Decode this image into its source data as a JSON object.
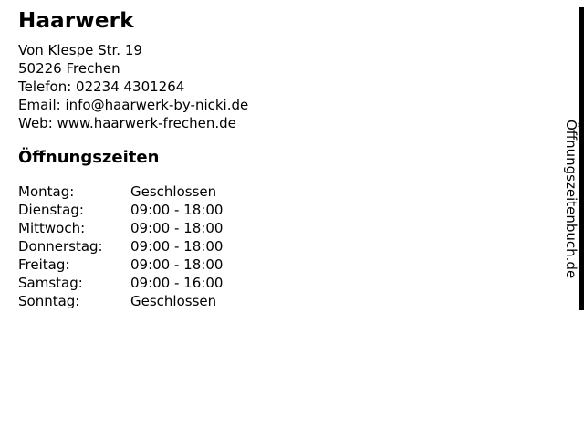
{
  "business": {
    "name": "Haarwerk",
    "address_line1": "Von Klespe Str. 19",
    "address_line2": "50226 Frechen",
    "phone_line": "Telefon: 02234 4301264",
    "email_line": "Email: info@haarwerk-by-nicki.de",
    "web_line": "Web: www.haarwerk-frechen.de"
  },
  "hours": {
    "heading": "Öffnungszeiten",
    "rows": [
      {
        "day": "Montag:",
        "time": "Geschlossen"
      },
      {
        "day": "Dienstag:",
        "time": "09:00 - 18:00"
      },
      {
        "day": "Mittwoch:",
        "time": "09:00 - 18:00"
      },
      {
        "day": "Donnerstag:",
        "time": "09:00 - 18:00"
      },
      {
        "day": "Freitag:",
        "time": "09:00 - 18:00"
      },
      {
        "day": "Samstag:",
        "time": "09:00 - 16:00"
      },
      {
        "day": "Sonntag:",
        "time": "Geschlossen"
      }
    ]
  },
  "watermark": {
    "label": "Öffnungszeitenbuch.de"
  },
  "colors": {
    "text": "#000000",
    "background": "#ffffff",
    "edge_bar": "#000000"
  }
}
